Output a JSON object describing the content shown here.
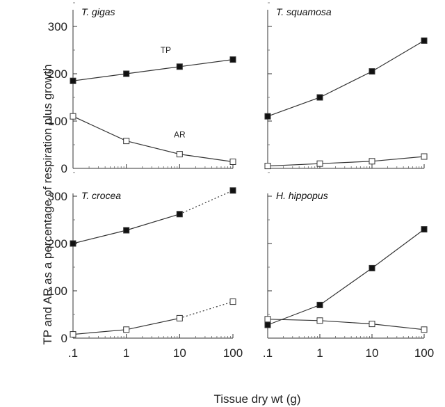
{
  "chart_data": {
    "type": "line",
    "x_scale": "log",
    "xlabel": "Tissue dry wt (g)",
    "ylabel": "TP and AR as a percentage of respiration plus growth",
    "x_ticks": [
      0.1,
      1,
      10,
      100
    ],
    "x_tick_labels": [
      ".1",
      "1",
      "10",
      "100"
    ],
    "y_ticks": [
      0,
      100,
      200,
      300
    ],
    "y_tick_labels": [
      "0",
      "100",
      "200",
      "300"
    ],
    "xlim": [
      0.1,
      100
    ],
    "ylim": [
      0,
      350
    ],
    "grid": false,
    "panels": [
      {
        "title": "T. gigas",
        "series": [
          {
            "name": "TP",
            "marker": "filled-square",
            "x": [
              0.1,
              1,
              10,
              100
            ],
            "y": [
              185,
              200,
              215,
              230
            ],
            "dotted_last_segment": false
          },
          {
            "name": "AR",
            "marker": "open-square",
            "x": [
              0.1,
              1,
              10,
              100
            ],
            "y": [
              110,
              58,
              30,
              14
            ],
            "dotted_last_segment": false
          }
        ]
      },
      {
        "title": "T. squamosa",
        "series": [
          {
            "marker": "filled-square",
            "x": [
              0.1,
              1,
              10,
              100
            ],
            "y": [
              110,
              150,
              205,
              270
            ],
            "dotted_last_segment": false
          },
          {
            "marker": "open-square",
            "x": [
              0.1,
              1,
              10,
              100
            ],
            "y": [
              5,
              10,
              15,
              25
            ],
            "dotted_last_segment": false
          }
        ]
      },
      {
        "title": "T. crocea",
        "series": [
          {
            "marker": "filled-square",
            "x": [
              0.1,
              1,
              10,
              100
            ],
            "y": [
              200,
              228,
              262,
              312
            ],
            "dotted_last_segment": true
          },
          {
            "marker": "open-square",
            "x": [
              0.1,
              1,
              10,
              100
            ],
            "y": [
              8,
              18,
              42,
              77
            ],
            "dotted_last_segment": true
          }
        ]
      },
      {
        "title": "H. hippopus",
        "series": [
          {
            "marker": "filled-square",
            "x": [
              0.1,
              1,
              10,
              100
            ],
            "y": [
              28,
              70,
              148,
              230
            ],
            "dotted_last_segment": false
          },
          {
            "marker": "open-square",
            "x": [
              0.1,
              1,
              10,
              100
            ],
            "y": [
              40,
              37,
              30,
              18
            ],
            "dotted_last_segment": false
          }
        ]
      }
    ]
  }
}
